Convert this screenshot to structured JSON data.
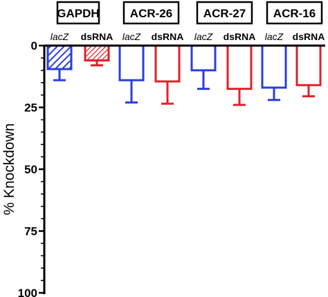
{
  "chart_data": {
    "type": "bar",
    "ylabel": "% Knockdown",
    "ylim": [
      0,
      100
    ],
    "y_inverted": true,
    "yticks": [
      "0",
      "25",
      "50",
      "75",
      "100"
    ],
    "grid": false,
    "groups": [
      {
        "name": "GAPDH",
        "bars": [
          {
            "label": "lacZ",
            "value": 9.5,
            "error": 4.5,
            "color": "#2a3fd6",
            "hatched": true
          },
          {
            "label": "dsRNA",
            "value": 6,
            "error": 2,
            "color": "#e0202a",
            "hatched": true
          }
        ]
      },
      {
        "name": "ACR-26",
        "bars": [
          {
            "label": "lacZ",
            "value": 14,
            "error": 9,
            "color": "#2a3fd6",
            "hatched": false
          },
          {
            "label": "dsRNA",
            "value": 14.5,
            "error": 9,
            "color": "#e0202a",
            "hatched": false
          }
        ]
      },
      {
        "name": "ACR-27",
        "bars": [
          {
            "label": "lacZ",
            "value": 10,
            "error": 7.5,
            "color": "#2a3fd6",
            "hatched": false
          },
          {
            "label": "dsRNA",
            "value": 17.5,
            "error": 6.5,
            "color": "#e0202a",
            "hatched": false
          }
        ]
      },
      {
        "name": "ACR-16",
        "bars": [
          {
            "label": "lacZ",
            "value": 17,
            "error": 5,
            "color": "#2a3fd6",
            "hatched": false
          },
          {
            "label": "dsRNA",
            "value": 16,
            "error": 4.5,
            "color": "#e0202a",
            "hatched": false
          }
        ]
      }
    ]
  }
}
